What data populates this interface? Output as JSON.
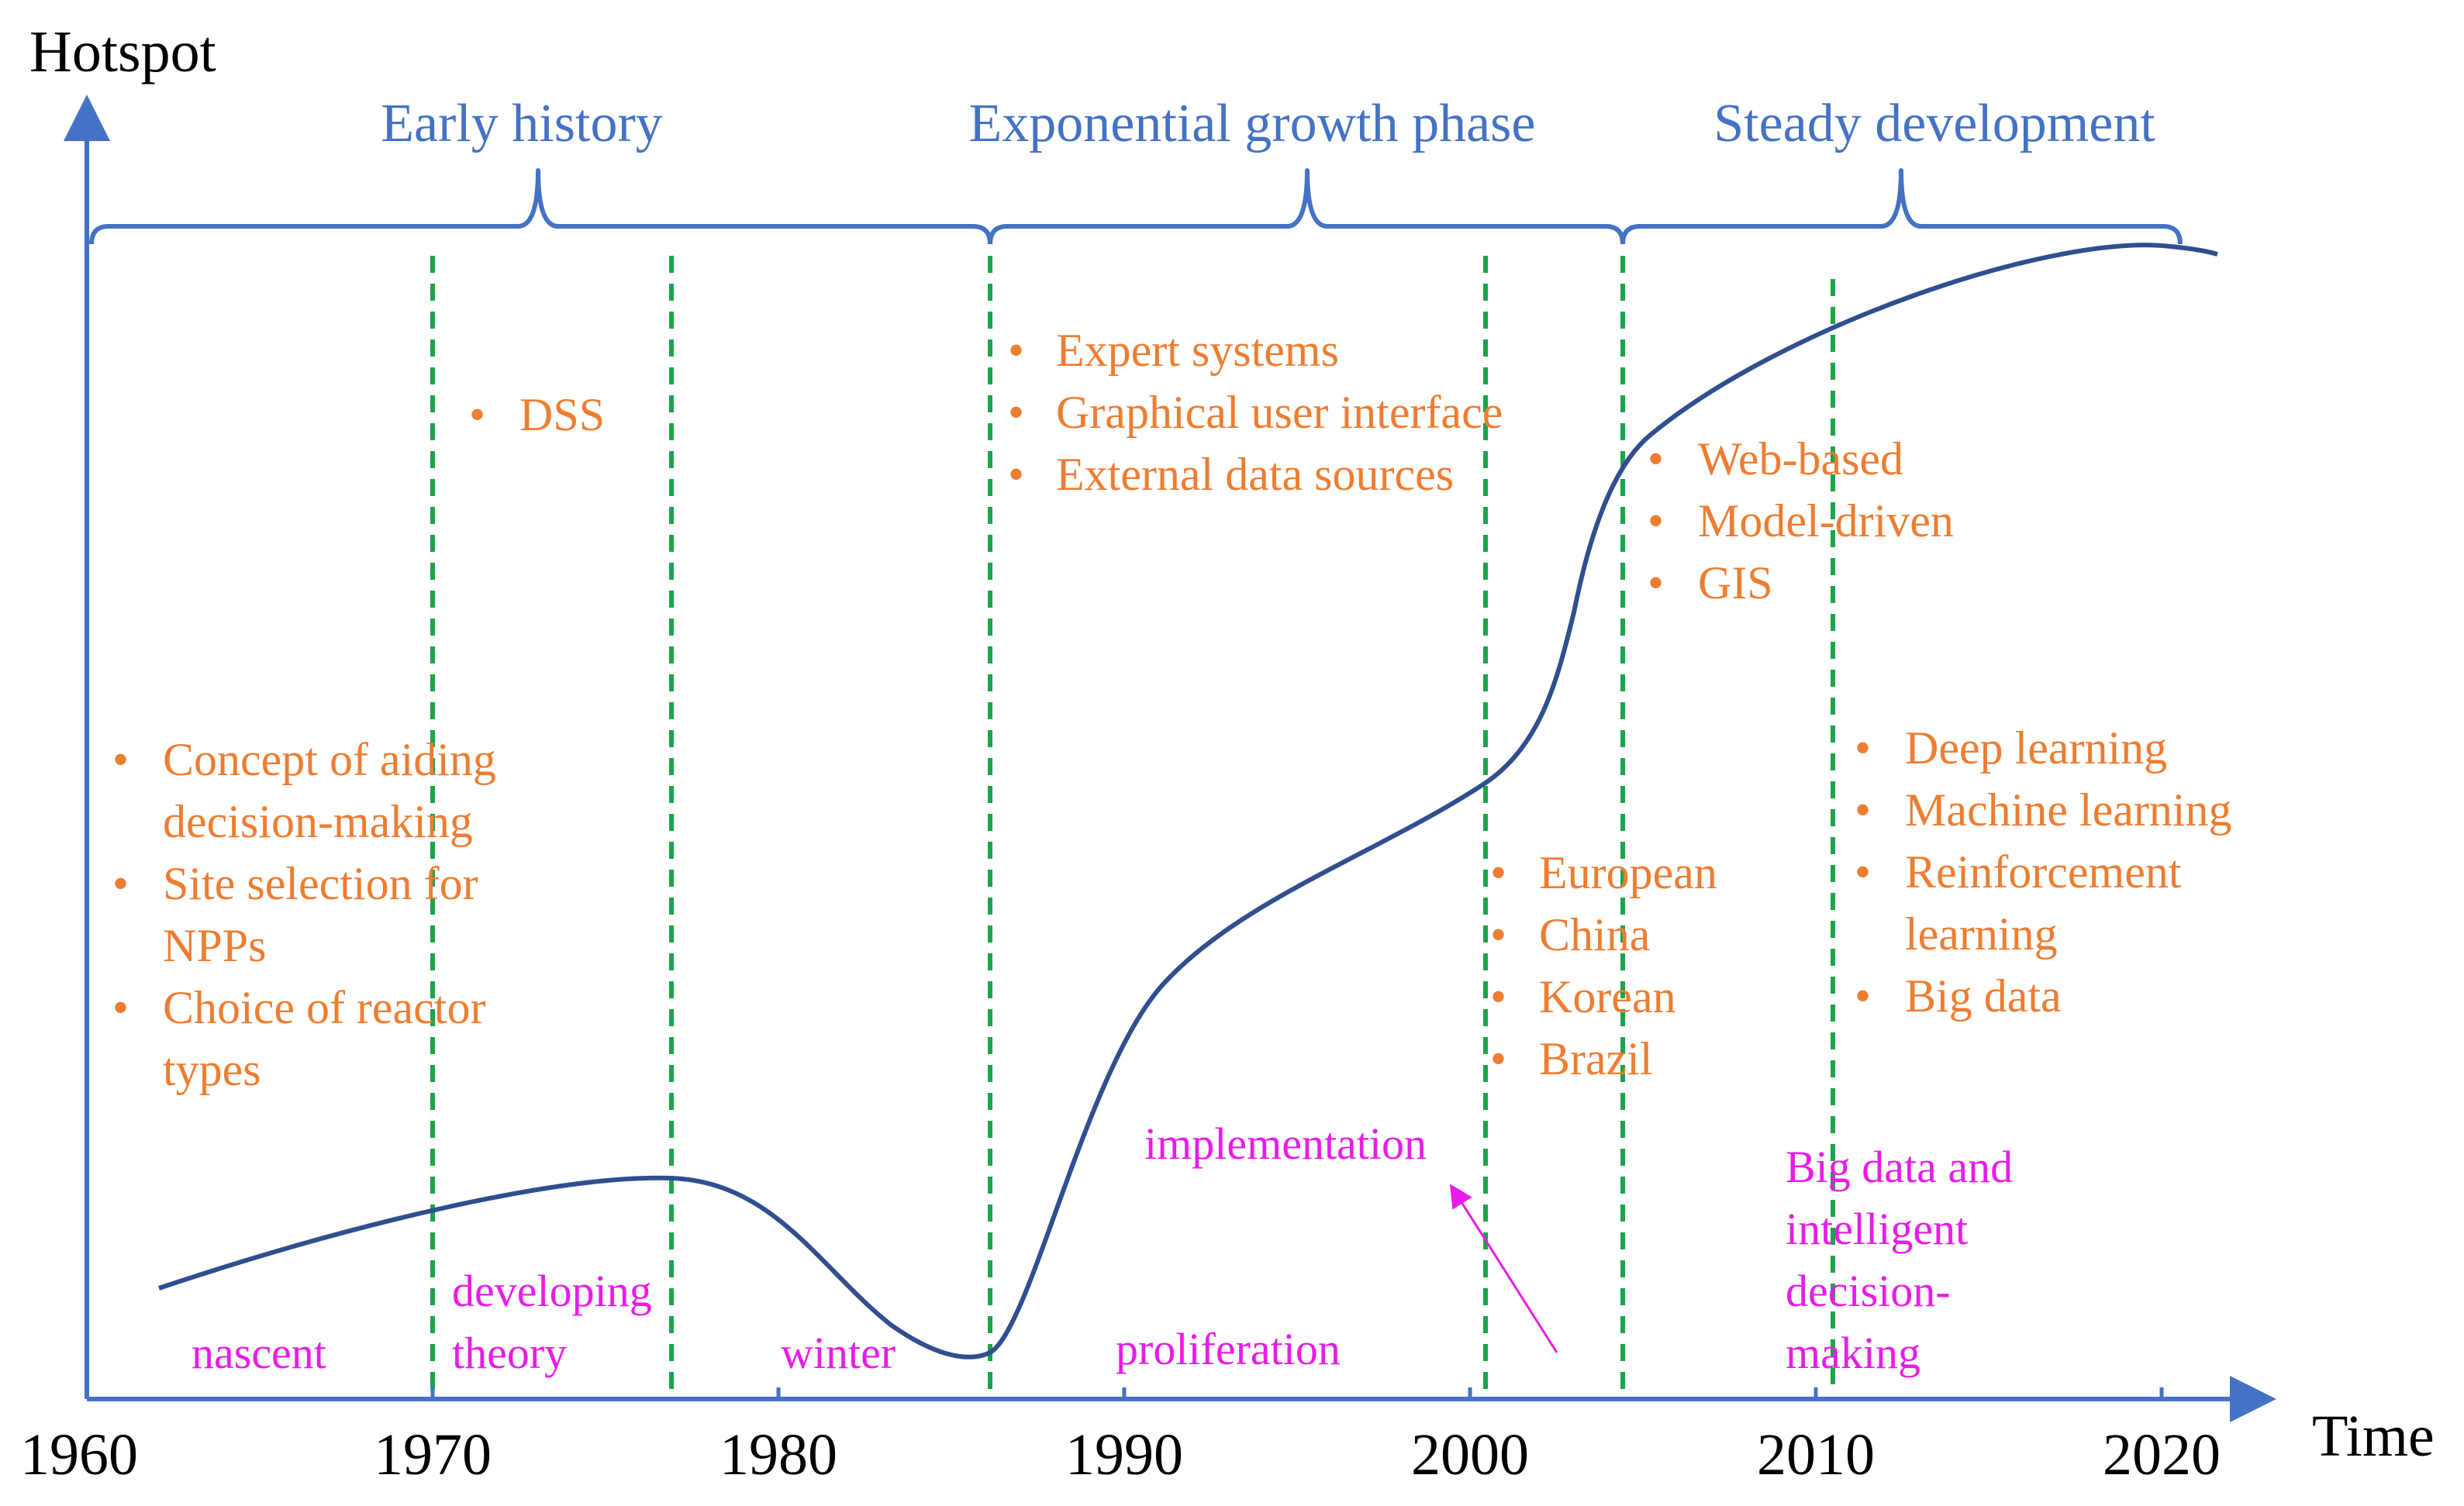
{
  "axes": {
    "y_label": "Hotspot",
    "x_label": "Time",
    "x_ticks": [
      "1960",
      "1970",
      "1980",
      "1990",
      "2000",
      "2010",
      "2020"
    ]
  },
  "phases": [
    {
      "label": "Early history",
      "start": 1960,
      "end": 1986
    },
    {
      "label": "Exponential growth phase",
      "start": 1986,
      "end": 2004
    },
    {
      "label": "Steady development",
      "start": 2004,
      "end": 2020
    }
  ],
  "stages": {
    "nascent": "nascent",
    "developing": [
      "developing",
      "theory"
    ],
    "winter": "winter",
    "proliferation": "proliferation",
    "implementation": "implementation",
    "bigdata": [
      "Big data and",
      "intelligent",
      "decision-",
      "making"
    ]
  },
  "topics": {
    "early": [
      "Concept of aiding",
      "decision-making",
      "Site selection for",
      "NPPs",
      "Choice of reactor",
      "types"
    ],
    "dss": [
      "DSS"
    ],
    "expert": [
      "Expert systems",
      "Graphical user interface",
      "External data sources"
    ],
    "web": [
      "Web-based",
      "Model-driven",
      "GIS"
    ],
    "countries": [
      "European",
      "China",
      "Korean",
      "Brazil"
    ],
    "deep": [
      "Deep learning",
      "Machine learning",
      "Reinforcement",
      "learning",
      "Big data"
    ]
  },
  "dividers": [
    1970,
    1977,
    1986,
    2000,
    2004,
    2010
  ],
  "colors": {
    "axis": "#4472C4",
    "phase": "#4472C4",
    "curve": "#2F4F8F",
    "divider": "#1BA44A",
    "topic": "#ED7D31",
    "stage": "#E81CE8",
    "text": "#000000"
  }
}
